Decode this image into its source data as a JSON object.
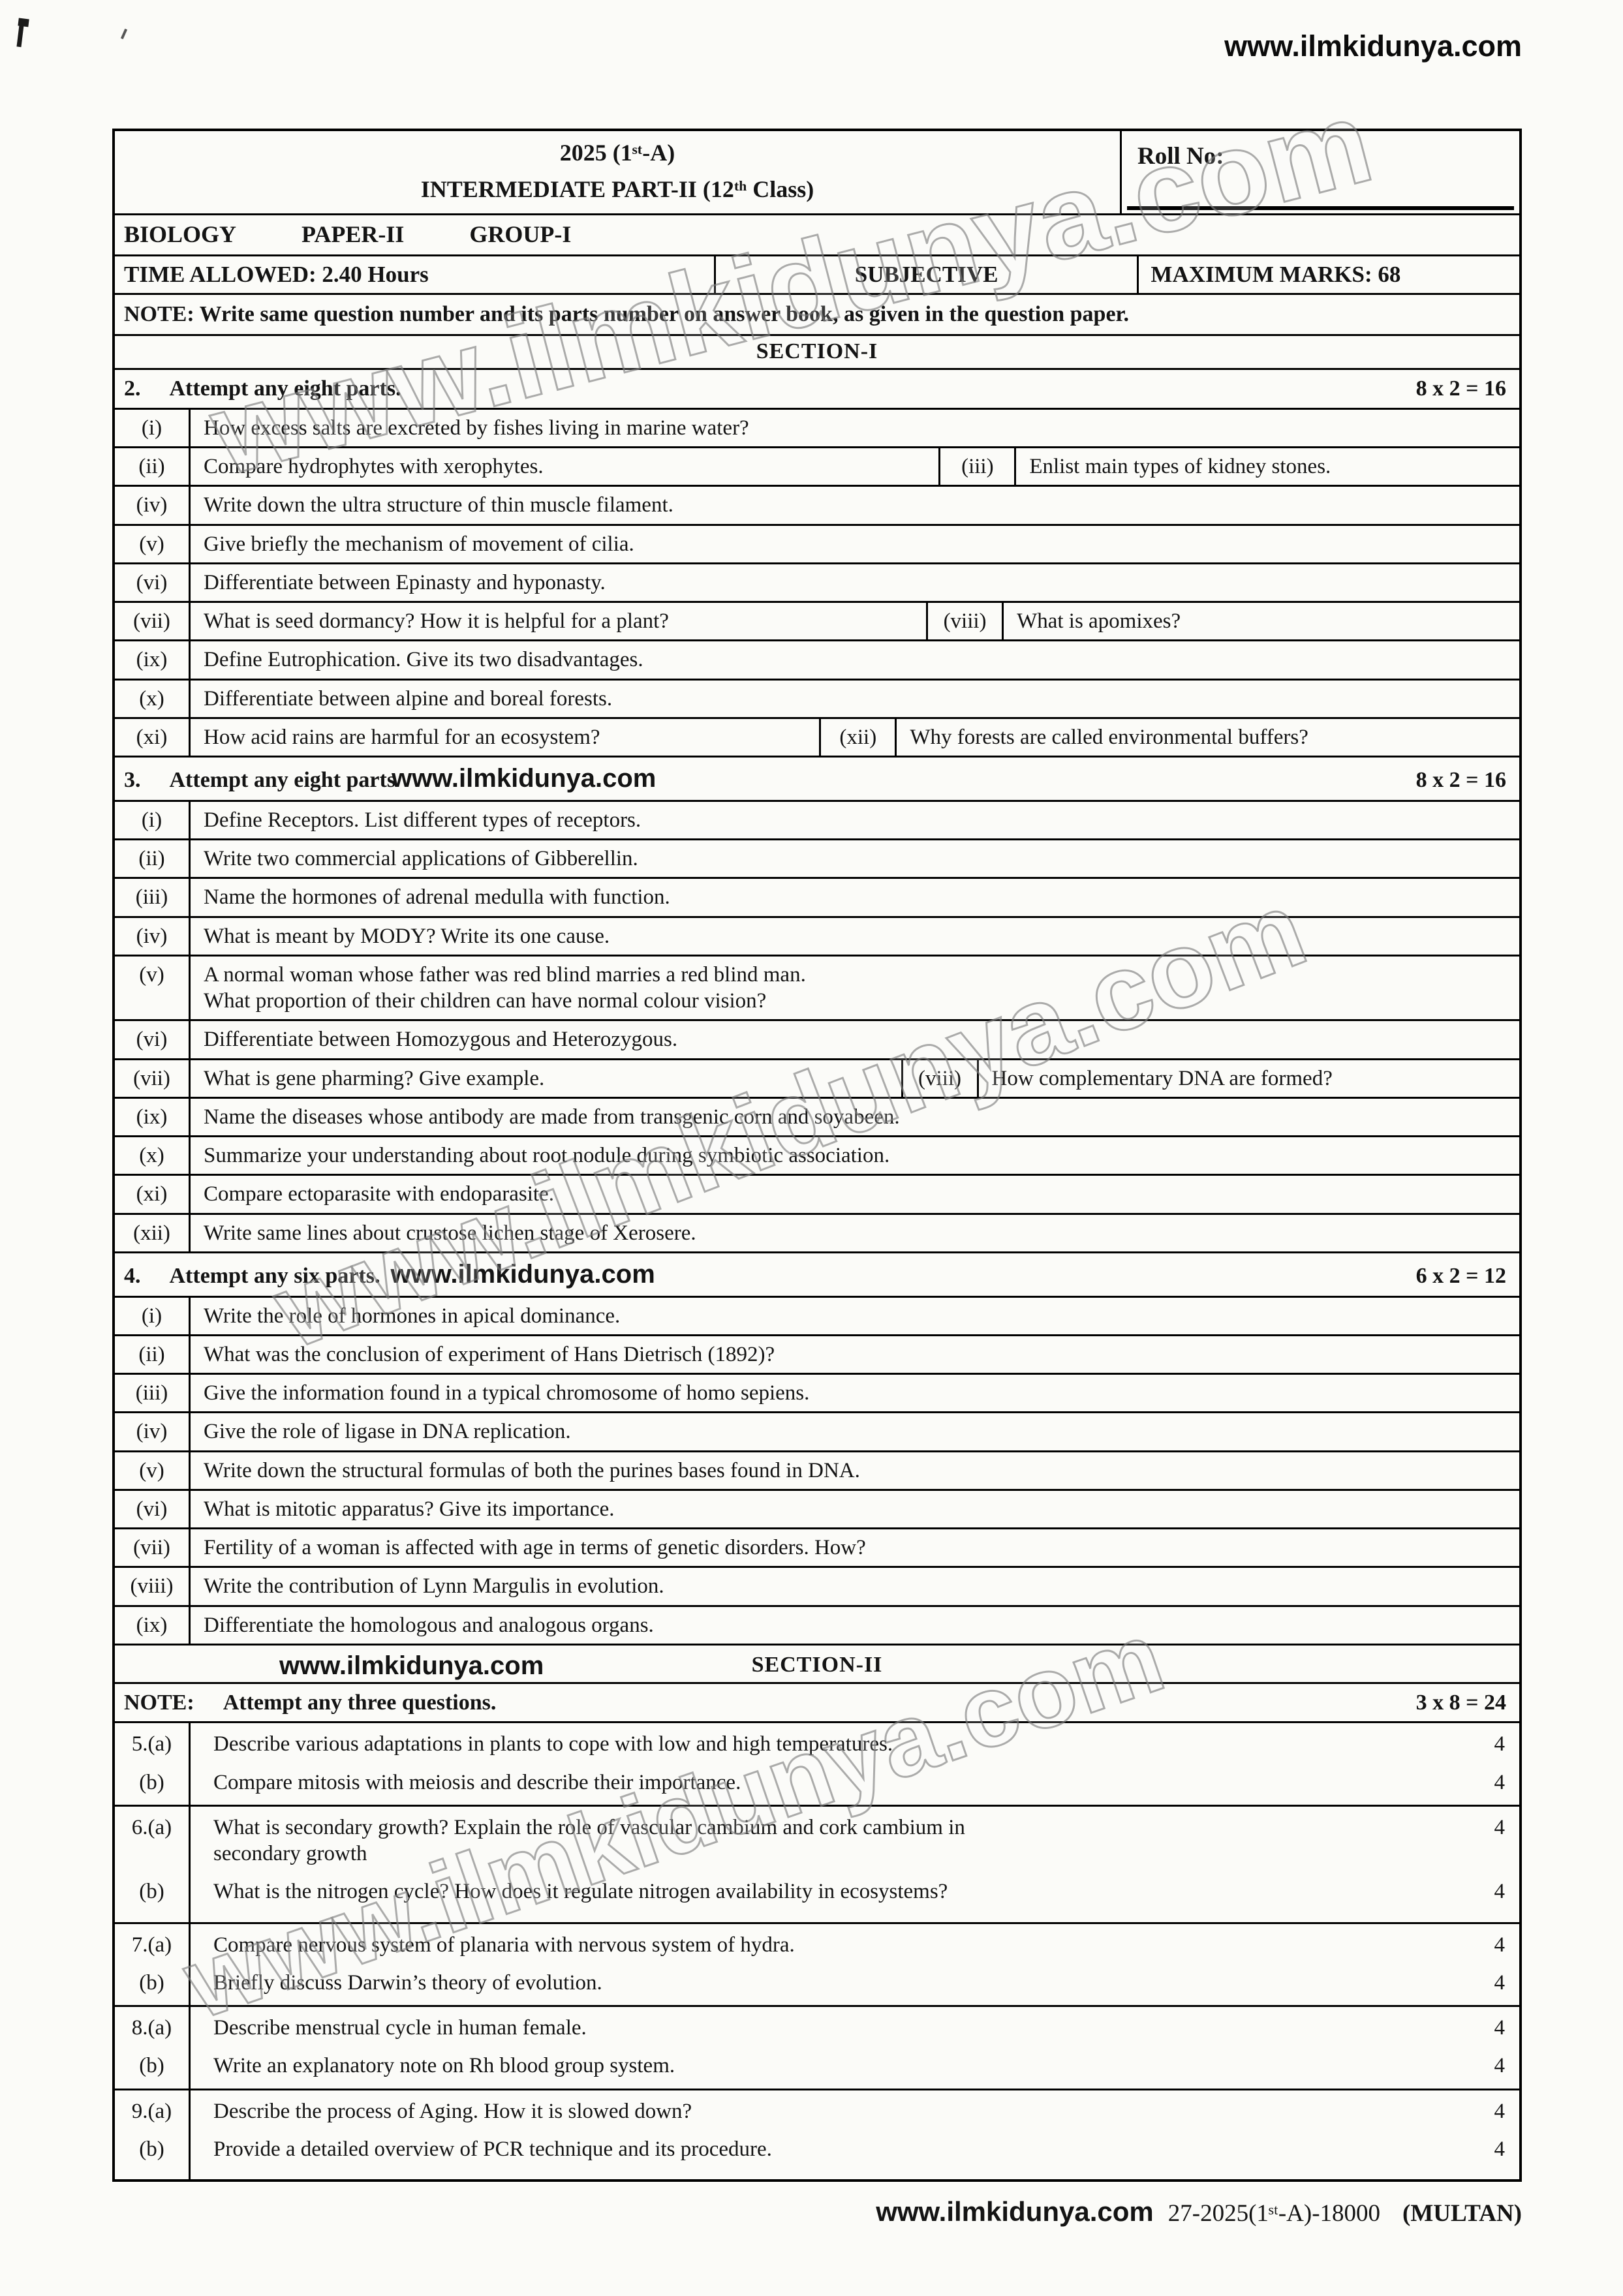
{
  "page": {
    "site": "www.ilmkidunya.com",
    "watermark": "www.ilmkidunya.com"
  },
  "header": {
    "year_title": "2025 (1ˢᵗ-A)",
    "exam_title": "INTERMEDIATE PART-II (12ᵗʰ Class)",
    "roll_no_label": "Roll No:",
    "subject": "BIOLOGY",
    "paper": "PAPER-II",
    "group": "GROUP-I",
    "time_allowed": "TIME ALLOWED: 2.40 Hours",
    "paper_type": "SUBJECTIVE",
    "max_marks": "MAXIMUM MARKS: 68",
    "note": "NOTE:   Write same question number and its parts number on answer book, as given in the question paper.",
    "section1_title": "SECTION-I"
  },
  "q2": {
    "number": "2.",
    "instruction": "Attempt any eight parts.",
    "marks": "8 x 2 = 16",
    "parts": [
      {
        "num": "(i)",
        "text": "How excess salts are excreted by fishes living in marine water?"
      },
      {
        "num": "(ii)",
        "text": "Compare hydrophytes with xerophytes.",
        "num2": "(iii)",
        "text2": "Enlist main types of kidney stones."
      },
      {
        "num": "(iv)",
        "text": "Write down the ultra structure of thin muscle filament."
      },
      {
        "num": "(v)",
        "text": "Give briefly the mechanism of movement of cilia."
      },
      {
        "num": "(vi)",
        "text": "Differentiate between Epinasty and hyponasty."
      },
      {
        "num": "(vii)",
        "text": "What is seed dormancy?  How it is helpful for a plant?",
        "num2": "(viii)",
        "text2": "What is apomixes?"
      },
      {
        "num": "(ix)",
        "text": "Define Eutrophication.  Give its two disadvantages."
      },
      {
        "num": "(x)",
        "text": "Differentiate between alpine and boreal forests."
      },
      {
        "num": "(xi)",
        "text": "How acid rains are harmful for an ecosystem?",
        "num2": "(xii)",
        "text2": "Why forests are called environmental buffers?"
      }
    ]
  },
  "q3": {
    "number": "3.",
    "instruction": "Attempt any eight parts",
    "site": "www.ilmkidunya.com",
    "marks": "8 x 2 = 16",
    "parts": [
      {
        "num": "(i)",
        "text": "Define Receptors.  List different types of receptors."
      },
      {
        "num": "(ii)",
        "text": "Write two commercial applications of Gibberellin."
      },
      {
        "num": "(iii)",
        "text": "Name the hormones of adrenal medulla with function."
      },
      {
        "num": "(iv)",
        "text": "What is meant by MODY?   Write its one cause."
      },
      {
        "num": "(v)",
        "text": "A normal woman whose father was red blind marries a red blind man.",
        "line2": "What proportion of their children can have normal colour vision?"
      },
      {
        "num": "(vi)",
        "text": "Differentiate between Homozygous and Heterozygous."
      },
      {
        "num": "(vii)",
        "text": "What is gene pharming?  Give example.",
        "num2": "(viii)",
        "text2": "How complementary DNA are formed?"
      },
      {
        "num": "(ix)",
        "text": "Name the diseases whose antibody are made from transgenic corn and soyabeen."
      },
      {
        "num": "(x)",
        "text": "Summarize your understanding about root nodule during symbiotic association."
      },
      {
        "num": "(xi)",
        "text": "Compare ectoparasite with endoparasite."
      },
      {
        "num": "(xii)",
        "text": "Write same lines about crustose lichen stage of Xerosere."
      }
    ]
  },
  "q4": {
    "number": "4.",
    "instruction": "Attempt any six parts.",
    "site": "www.ilmkidunya.com",
    "marks": "6 x 2 = 12",
    "parts": [
      {
        "num": "(i)",
        "text": "Write the role of hormones in apical dominance."
      },
      {
        "num": "(ii)",
        "text": "What was the conclusion of experiment of Hans Dietrisch (1892)?"
      },
      {
        "num": "(iii)",
        "text": "Give the information found in a typical chromosome of homo sepiens."
      },
      {
        "num": "(iv)",
        "text": "Give the role of ligase in DNA replication."
      },
      {
        "num": "(v)",
        "text": "Write down the structural formulas of both the purines bases found in DNA."
      },
      {
        "num": "(vi)",
        "text": "What is mitotic apparatus?  Give its importance."
      },
      {
        "num": "(vii)",
        "text": "Fertility of a woman is affected with age in terms of genetic disorders.  How?"
      },
      {
        "num": "(viii)",
        "text": "Write the contribution of Lynn Margulis in evolution."
      },
      {
        "num": "(ix)",
        "text": "Differentiate the homologous and analogous organs."
      }
    ]
  },
  "section2": {
    "site": "www.ilmkidunya.com",
    "title": "SECTION-II",
    "note_label": "NOTE:",
    "note_text": "Attempt any three questions.",
    "marks": "3 x 8 = 24",
    "questions": [
      {
        "num_a": "5.(a)",
        "text_a": "Describe various adaptations in plants to cope with low and high temperatures.",
        "marks_a": "4",
        "num_b": "(b)",
        "text_b": "Compare mitosis with meiosis and describe their importance.",
        "marks_b": "4"
      },
      {
        "num_a": "6.(a)",
        "text_a": "What is secondary growth?  Explain the role of vascular cambium and cork cambium in",
        "text_a2": "secondary growth",
        "marks_a": "4",
        "num_b": "(b)",
        "text_b": "What is the nitrogen cycle?  How does it regulate nitrogen availability in ecosystems?",
        "marks_b": "4"
      },
      {
        "num_a": "7.(a)",
        "text_a": "Compare nervous system of planaria with nervous system of hydra.",
        "marks_a": "4",
        "num_b": "(b)",
        "text_b": "Briefly discuss Darwin’s theory of evolution.",
        "marks_b": "4"
      },
      {
        "num_a": "8.(a)",
        "text_a": "Describe menstrual cycle in human female.",
        "marks_a": "4",
        "num_b": "(b)",
        "text_b": "Write an explanatory note on Rh blood group system.",
        "marks_b": "4"
      },
      {
        "num_a": "9.(a)",
        "text_a": "Describe the process of Aging.  How it is slowed down?",
        "marks_a": "4",
        "num_b": "(b)",
        "text_b": "Provide a detailed overview of PCR technique and its procedure.",
        "marks_b": "4"
      }
    ]
  },
  "footer": {
    "site": "www.ilmkidunya.com",
    "code": "27-2025(1ˢᵗ-A)-18000",
    "region": "(MULTAN)"
  }
}
